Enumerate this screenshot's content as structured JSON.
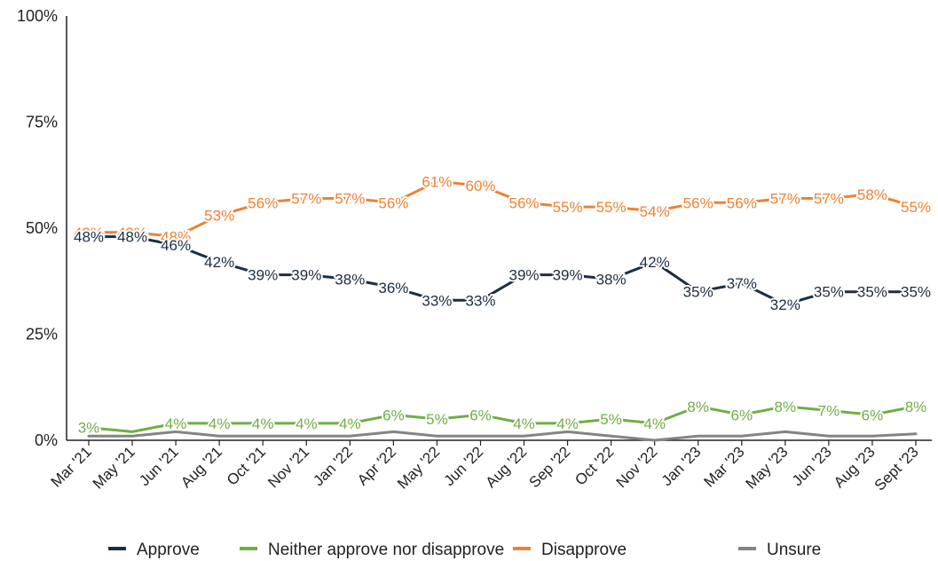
{
  "chart_data": {
    "type": "line",
    "title": "",
    "xlabel": "",
    "ylabel": "",
    "ylim": [
      0,
      100
    ],
    "y_ticks": [
      "0%",
      "25%",
      "50%",
      "75%",
      "100%"
    ],
    "y_tick_values": [
      0,
      25,
      50,
      75,
      100
    ],
    "grid": false,
    "legend_position": "bottom",
    "categories": [
      "Mar '21",
      "May '21",
      "Jun '21",
      "Aug '21",
      "Oct '21",
      "Nov '21",
      "Jan '22",
      "Apr '22",
      "May '22",
      "Jun '22",
      "Aug '22",
      "Sep '22",
      "Oct '22",
      "Nov '22",
      "Jan '23",
      "Mar '23",
      "May '23",
      "Jun '23",
      "Aug '23",
      "Sept '23"
    ],
    "series": [
      {
        "name": "Approve",
        "color": "#1b2e45",
        "values": [
          48,
          48,
          46,
          42,
          39,
          39,
          38,
          36,
          33,
          33,
          39,
          39,
          38,
          42,
          35,
          37,
          32,
          35,
          35,
          35
        ],
        "labels": [
          "48%",
          "48%",
          "46%",
          "42%",
          "39%",
          "39%",
          "38%",
          "36%",
          "33%",
          "33%",
          "39%",
          "39%",
          "38%",
          "42%",
          "35%",
          "37%",
          "32%",
          "35%",
          "35%",
          "35%"
        ]
      },
      {
        "name": "Neither approve nor disapprove",
        "color": "#6fae45",
        "values": [
          3,
          2,
          4,
          4,
          4,
          4,
          4,
          6,
          5,
          6,
          4,
          4,
          5,
          4,
          8,
          6,
          8,
          7,
          6,
          8
        ],
        "labels": [
          "3%",
          "",
          "4%",
          "4%",
          "4%",
          "4%",
          "4%",
          "6%",
          "5%",
          "6%",
          "4%",
          "4%",
          "5%",
          "4%",
          "8%",
          "6%",
          "8%",
          "7%",
          "6%",
          "8%"
        ]
      },
      {
        "name": "Disapprove",
        "color": "#ee8233",
        "values": [
          49,
          49,
          48,
          53,
          56,
          57,
          57,
          56,
          61,
          60,
          56,
          55,
          55,
          54,
          56,
          56,
          57,
          57,
          58,
          55
        ],
        "labels": [
          "49%",
          "49%",
          "48%",
          "53%",
          "56%",
          "57%",
          "57%",
          "56%",
          "61%",
          "60%",
          "56%",
          "55%",
          "55%",
          "54%",
          "56%",
          "56%",
          "57%",
          "57%",
          "58%",
          "55%"
        ]
      },
      {
        "name": "Unsure",
        "color": "#848484",
        "values": [
          1,
          1,
          2,
          1,
          1,
          1,
          1,
          2,
          1,
          1,
          1,
          2,
          1,
          0,
          1,
          1,
          2,
          1,
          1,
          1.5
        ],
        "labels": []
      }
    ]
  }
}
